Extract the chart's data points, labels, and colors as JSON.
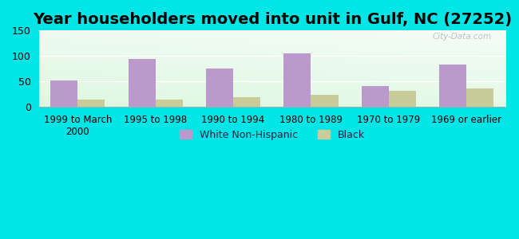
{
  "title": "Year householders moved into unit in Gulf, NC (27252)",
  "categories": [
    "1999 to March\n2000",
    "1995 to 1998",
    "1990 to 1994",
    "1980 to 1989",
    "1970 to 1979",
    "1969 or earlier"
  ],
  "white_values": [
    52,
    94,
    76,
    105,
    41,
    83
  ],
  "black_values": [
    15,
    14,
    19,
    24,
    31,
    36
  ],
  "white_color": "#bb99cc",
  "black_color": "#c8cc99",
  "ylim": [
    0,
    150
  ],
  "yticks": [
    0,
    50,
    100,
    150
  ],
  "background_outer": "#00e5e5",
  "bar_width": 0.35,
  "legend_white": "White Non-Hispanic",
  "legend_black": "Black",
  "title_fontsize": 14,
  "watermark": "City-Data.com"
}
